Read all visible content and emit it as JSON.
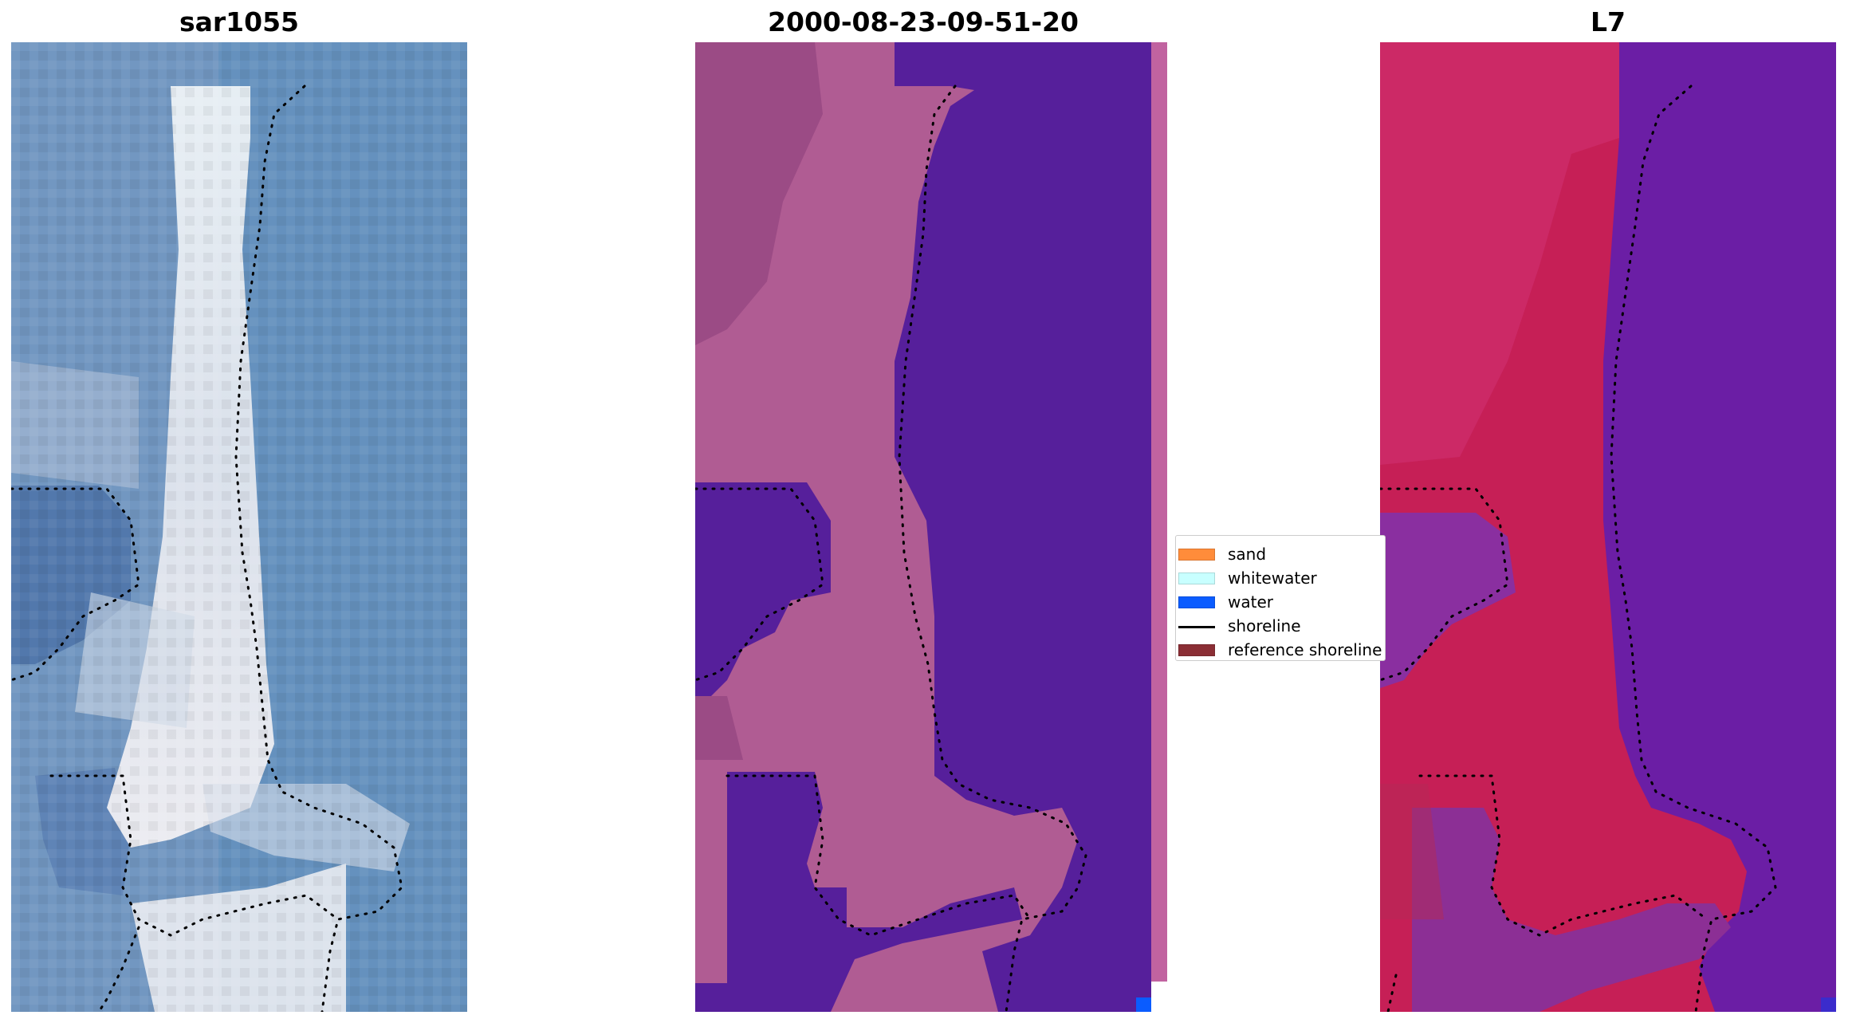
{
  "panels": [
    {
      "title": "sar1055"
    },
    {
      "title": "2000-08-23-09-51-20"
    },
    {
      "title": "L7"
    }
  ],
  "legend": {
    "items": [
      {
        "label": "sand",
        "kind": "patch",
        "color": "#ff8c3a"
      },
      {
        "label": "whitewater",
        "kind": "patch",
        "color": "#c8ffff"
      },
      {
        "label": "water",
        "kind": "patch",
        "color": "#0a5cff"
      },
      {
        "label": "shoreline",
        "kind": "line",
        "color": "#000000"
      },
      {
        "label": "reference shoreline",
        "kind": "patch",
        "color": "#8b2e35"
      }
    ]
  },
  "colors": {
    "rgb_water": "#5f8fbd",
    "rgb_sand": "#dfe3ea",
    "class_water": "#561f9b",
    "class_land": "#b35d92",
    "ndwi_land": "#c7174d",
    "ndwi_water": "#5b16a8"
  }
}
